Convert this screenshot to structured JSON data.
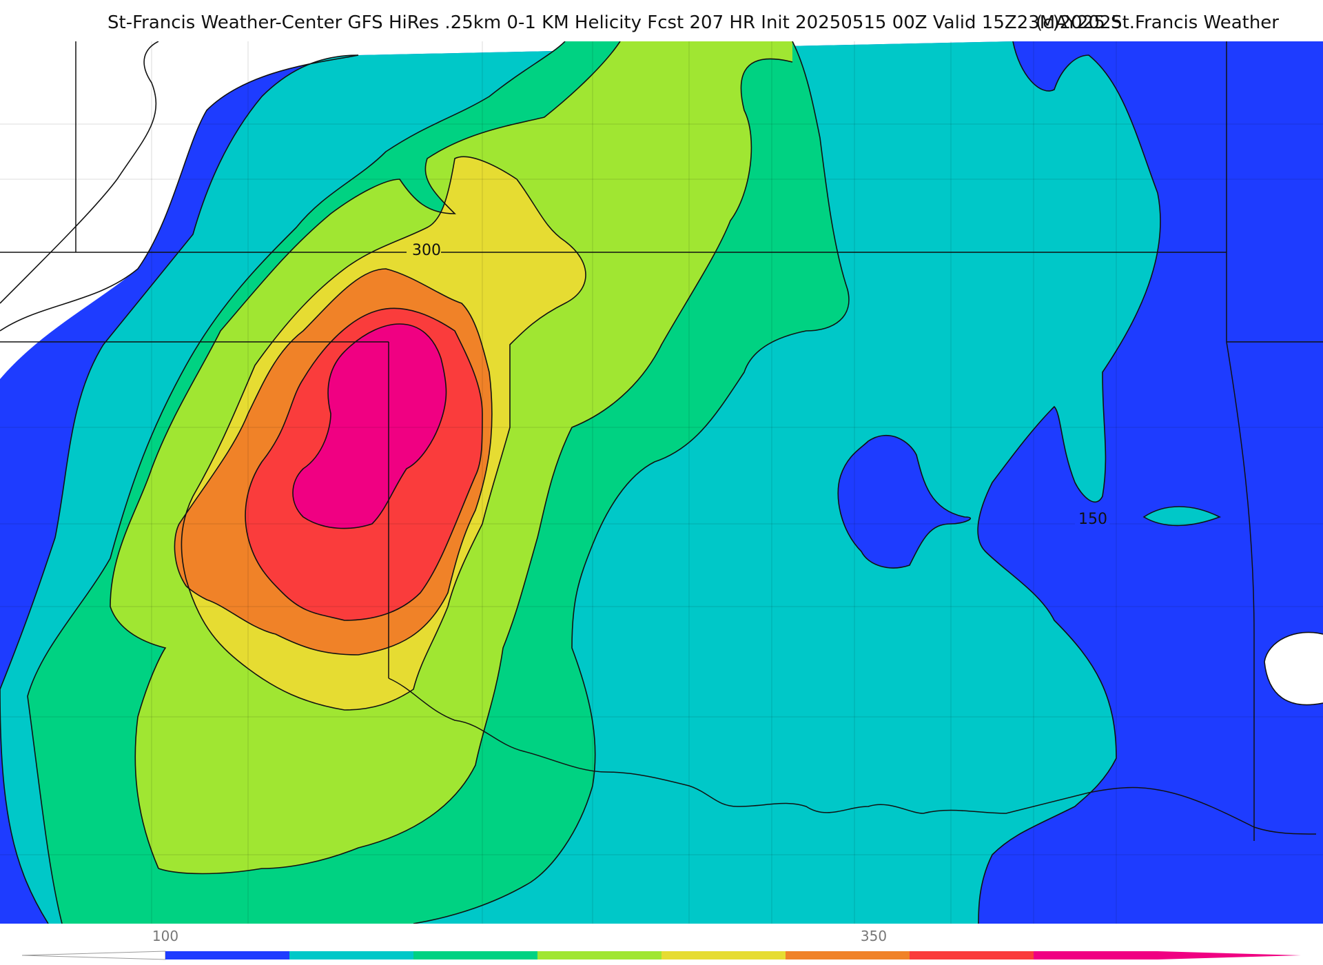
{
  "header": {
    "title": "St-Francis Weather-Center GFS HiRes .25km 0-1 KM Helicity Fcst 207 HR Init 20250515 00Z  Valid 15Z23MAY2025",
    "credit": "(c)2025 St.Francis Weather"
  },
  "map": {
    "contour_labels": [
      {
        "text": "300"
      },
      {
        "text": "150"
      }
    ]
  },
  "colorbar": {
    "tick_labels": [
      "100",
      "350"
    ],
    "bins": [
      {
        "color": "#1e3cff"
      },
      {
        "color": "#00c8c8"
      },
      {
        "color": "#00d282"
      },
      {
        "color": "#a0e632"
      },
      {
        "color": "#e6dc32"
      },
      {
        "color": "#f08228"
      },
      {
        "color": "#fa3c3c"
      },
      {
        "color": "#f00082"
      }
    ]
  },
  "colors": {
    "blue": "#1e3cff",
    "cyan": "#00c8c8",
    "green": "#00d282",
    "lime": "#a0e632",
    "yellow": "#e6dc32",
    "orange": "#f08228",
    "red": "#fa3c3c",
    "magenta": "#f00082"
  }
}
